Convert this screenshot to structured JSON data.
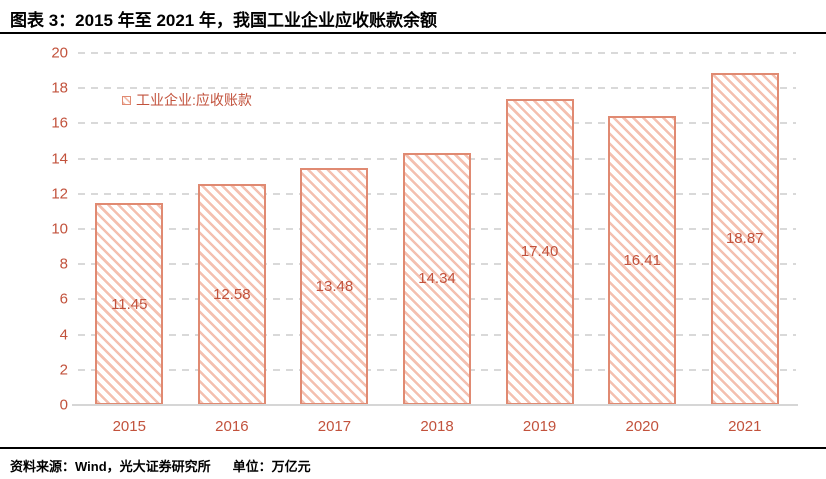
{
  "header": {
    "title": "图表 3：2015 年至 2021 年，我国工业企业应收账款余额"
  },
  "legend": {
    "label": "工业企业:应收账款",
    "swatch": "hatched-square"
  },
  "footer": {
    "source": "资料来源：Wind，光大证券研究所",
    "unit": "单位：万亿元"
  },
  "colors": {
    "accent_text": "#c2523c",
    "bar_border": "#e08a72",
    "bar_hatch_stripe": "#f4c0b0",
    "gridline": "#d9d9d9",
    "axis_line": "#d6d6d6",
    "title_text": "#000000"
  },
  "chart_data": {
    "type": "bar",
    "title": "图表 3：2015 年至 2021 年，我国工业企业应收账款余额",
    "series_name": "工业企业:应收账款",
    "categories": [
      "2015",
      "2016",
      "2017",
      "2018",
      "2019",
      "2020",
      "2021"
    ],
    "values": [
      11.45,
      12.58,
      13.48,
      14.34,
      17.4,
      16.41,
      18.87
    ],
    "value_labels": [
      "11.45",
      "12.58",
      "13.48",
      "14.34",
      "17.40",
      "16.41",
      "18.87"
    ],
    "unit": "万亿元",
    "xlabel": "",
    "ylabel": "",
    "ylim": [
      0,
      20
    ],
    "yticks": [
      0,
      2,
      4,
      6,
      8,
      10,
      12,
      14,
      16,
      18,
      20
    ],
    "grid": "horizontal-dashed",
    "bar_style": "diagonal-hatch",
    "legend_position": "top-left-inside"
  }
}
